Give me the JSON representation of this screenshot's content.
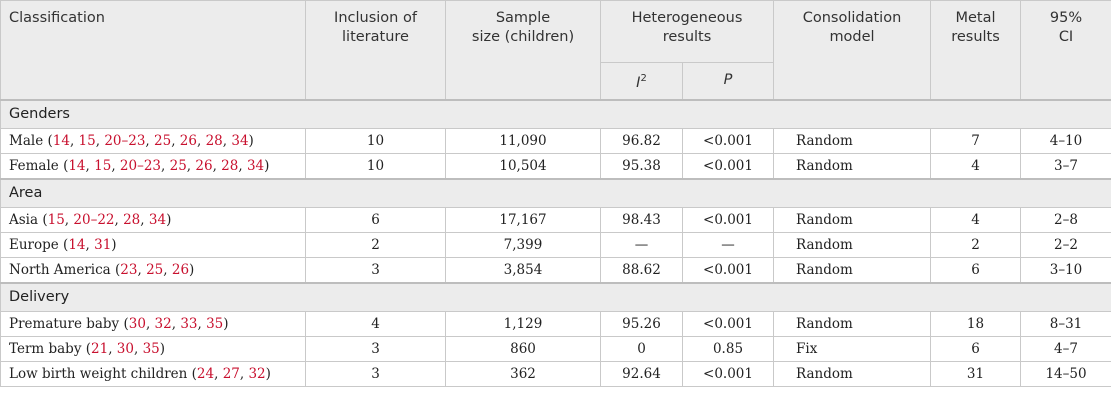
{
  "header": {
    "classification": [
      "Classification"
    ],
    "inclusion": [
      "Inclusion of",
      "literature"
    ],
    "sample": [
      "Sample",
      "size (children)"
    ],
    "heterogeneous": [
      "Heterogeneous",
      "results"
    ],
    "i2": {
      "symbol": "I",
      "sup": "2"
    },
    "p": "P",
    "model": [
      "Consolidation",
      "model"
    ],
    "metal": [
      "Metal",
      "results"
    ],
    "ci": [
      "95%",
      "CI"
    ]
  },
  "ref_color": "#c8102e",
  "sections": [
    {
      "title": "Genders",
      "rows": [
        {
          "label": [
            "Male (",
            "14",
            ", ",
            "15",
            ", ",
            "20–23",
            ", ",
            "25",
            ", ",
            "26",
            ", ",
            "28",
            ", ",
            "34",
            ")"
          ],
          "cells": [
            "10",
            "11,090",
            "96.82",
            "<0.001",
            "Random",
            "7",
            "4–10"
          ]
        },
        {
          "label": [
            "Female (",
            "14",
            ", ",
            "15",
            ", ",
            "20–23",
            ", ",
            "25",
            ", ",
            "26",
            ", ",
            "28",
            ", ",
            "34",
            ")"
          ],
          "cells": [
            "10",
            "10,504",
            "95.38",
            "<0.001",
            "Random",
            "4",
            "3–7"
          ]
        }
      ]
    },
    {
      "title": "Area",
      "rows": [
        {
          "label": [
            "Asia (",
            "15",
            ", ",
            "20–22",
            ", ",
            "28",
            ", ",
            "34",
            ")"
          ],
          "cells": [
            "6",
            "17,167",
            "98.43",
            "<0.001",
            "Random",
            "4",
            "2–8"
          ]
        },
        {
          "label": [
            "Europe (",
            "14",
            ", ",
            "31",
            ")"
          ],
          "cells": [
            "2",
            "7,399",
            "—",
            "—",
            "Random",
            "2",
            "2–2"
          ]
        },
        {
          "label": [
            "North America (",
            "23",
            ", ",
            "25",
            ", ",
            "26",
            ")"
          ],
          "cells": [
            "3",
            "3,854",
            "88.62",
            "<0.001",
            "Random",
            "6",
            "3–10"
          ]
        }
      ]
    },
    {
      "title": "Delivery",
      "rows": [
        {
          "label": [
            "Premature baby (",
            "30",
            ", ",
            "32",
            ", ",
            "33",
            ", ",
            "35",
            ")"
          ],
          "cells": [
            "4",
            "1,129",
            "95.26",
            "<0.001",
            "Random",
            "18",
            "8–31"
          ]
        },
        {
          "label": [
            "Term baby (",
            "21",
            ", ",
            "30",
            ", ",
            "35",
            ")"
          ],
          "cells": [
            "3",
            "860",
            "0",
            "0.85",
            "Fix",
            "6",
            "4–7"
          ]
        },
        {
          "label": [
            "Low birth weight children (",
            "24",
            ", ",
            "27",
            ", ",
            "32",
            ")"
          ],
          "cells": [
            "3",
            "362",
            "92.64",
            "<0.001",
            "Random",
            "31",
            "14–50"
          ]
        }
      ]
    }
  ]
}
